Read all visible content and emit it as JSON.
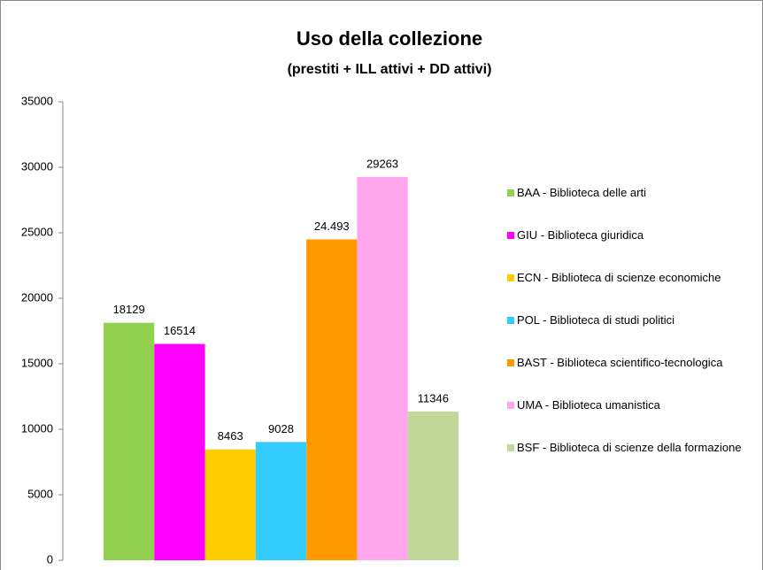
{
  "chart_data": {
    "type": "bar",
    "title": "Uso della collezione",
    "subtitle": "(prestiti + ILL attivi + DD attivi)",
    "ylim": [
      0,
      35000
    ],
    "yticks": [
      0,
      5000,
      10000,
      15000,
      20000,
      25000,
      30000,
      35000
    ],
    "series": [
      {
        "name": "BAA - Biblioteca delle arti",
        "color": "#92d050",
        "values": [
          18129
        ]
      },
      {
        "name": "GIU - Biblioteca giuridica",
        "color": "#ff00ff",
        "values": [
          16514
        ]
      },
      {
        "name": "ECN - Biblioteca di scienze economiche",
        "color": "#ffcc00",
        "values": [
          8463
        ]
      },
      {
        "name": "POL - Biblioteca di studi politici",
        "color": "#33ccff",
        "values": [
          9028
        ]
      },
      {
        "name": "BAST - Biblioteca scientifico-tecnologica",
        "color": "#ff9900",
        "values": [
          24493
        ],
        "value_labels": [
          "24.493"
        ]
      },
      {
        "name": "UMA - Biblioteca umanistica",
        "color": "#ffa6ec",
        "values": [
          29263
        ]
      },
      {
        "name": "BSF - Biblioteca di scienze della formazione",
        "color": "#c4d79b",
        "values": [
          11346
        ]
      }
    ]
  }
}
